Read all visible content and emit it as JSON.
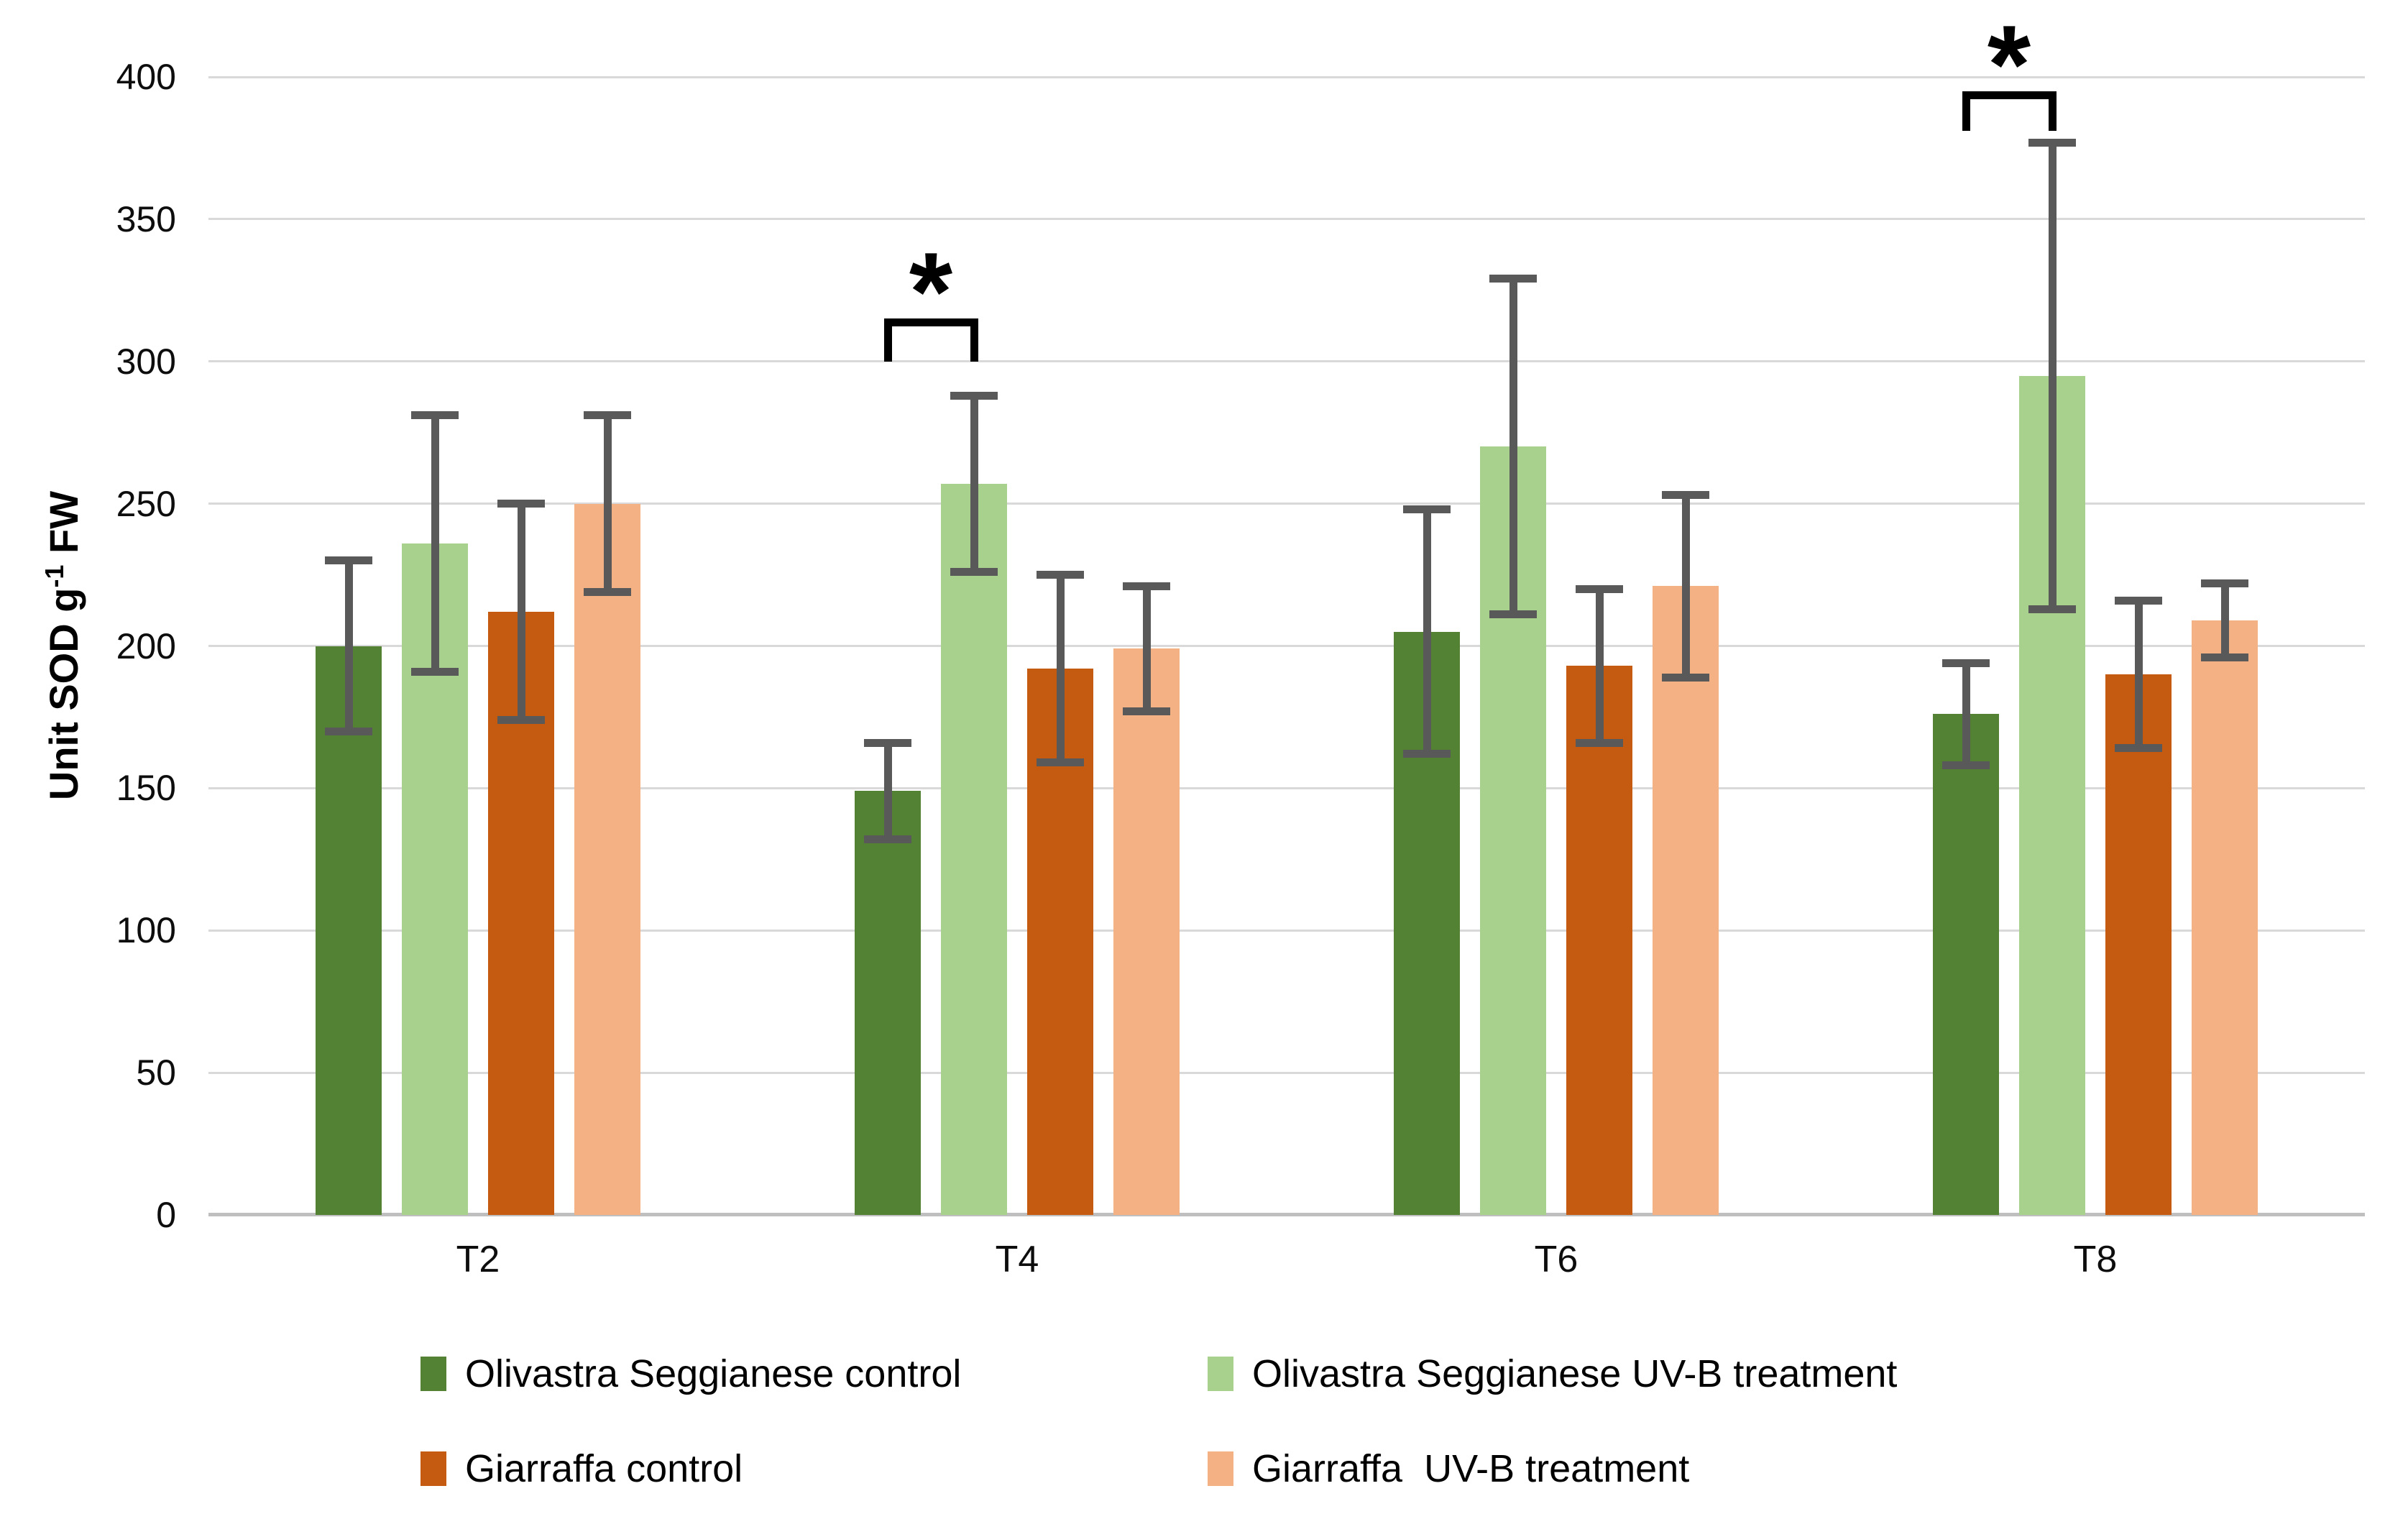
{
  "y_axis": {
    "title_prefix": "Unit SOD g",
    "title_sup": "-1",
    "title_suffix": " FW"
  },
  "chart_data": {
    "type": "bar",
    "title": "",
    "xlabel": "",
    "ylabel": "Unit SOD g⁻¹ FW",
    "ylim": [
      0,
      400
    ],
    "ticks": [
      0,
      50,
      100,
      150,
      200,
      250,
      300,
      350,
      400
    ],
    "grid": true,
    "legend_position": "bottom",
    "categories": [
      "T2",
      "T4",
      "T6",
      "T8"
    ],
    "series": [
      {
        "name": "Olivastra Seggianese control",
        "color": "#548235",
        "values": [
          200,
          149,
          205,
          176
        ],
        "errors": [
          30,
          17,
          43,
          18
        ]
      },
      {
        "name": "Olivastra Seggianese UV-B treatment",
        "color": "#A9D18E",
        "values": [
          236,
          257,
          270,
          295
        ],
        "errors": [
          45,
          31,
          59,
          82
        ]
      },
      {
        "name": "Giarraffa control",
        "color": "#C55A11",
        "values": [
          212,
          192,
          193,
          190
        ],
        "errors": [
          38,
          33,
          27,
          26
        ]
      },
      {
        "name": "Giarraffa  UV-B treatment",
        "color": "#F4B183",
        "values": [
          250,
          199,
          221,
          209
        ],
        "errors": [
          31,
          22,
          32,
          13
        ]
      }
    ],
    "significance": [
      {
        "category": "T4",
        "between": [
          0,
          1
        ],
        "label": "*",
        "bracket_y": 315,
        "leg_y": 300
      },
      {
        "category": "T8",
        "between": [
          0,
          1
        ],
        "label": "*",
        "bracket_y": 395,
        "leg_y": 381
      }
    ],
    "error_bar_color": "#595959",
    "gridline_color": "#d9d9d9",
    "axis_line_color": "#bfbfbf"
  }
}
